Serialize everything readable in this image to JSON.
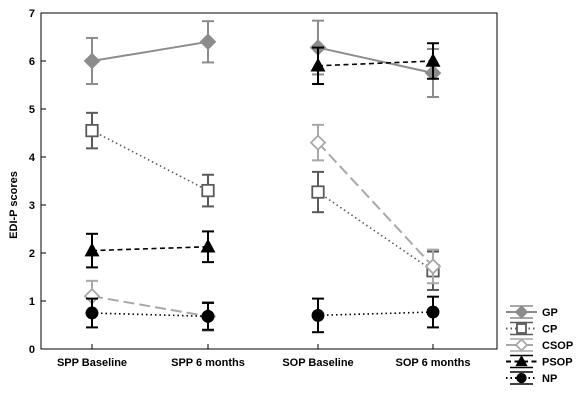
{
  "chart_data": {
    "type": "line",
    "title": "",
    "xlabel": "",
    "ylabel": "EDI-P scores",
    "ylim": [
      0,
      7
    ],
    "yticks": [
      "0",
      "1",
      "2",
      "3",
      "4",
      "5",
      "6",
      "7"
    ],
    "categories": [
      "SPP Baseline",
      "SPP 6 months",
      "SOP Baseline",
      "SOP 6 months"
    ],
    "grid": false,
    "legend_position": "bottom-right outside",
    "series": [
      {
        "name": "GP",
        "color": "#8c8c8c",
        "marker": "diamond-filled",
        "line": "solid",
        "segments": [
          {
            "points": [
              {
                "x": "SPP Baseline",
                "y": 6.0,
                "err": 0.48
              },
              {
                "x": "SPP 6 months",
                "y": 6.4,
                "err": 0.43
              }
            ]
          },
          {
            "points": [
              {
                "x": "SOP Baseline",
                "y": 6.28,
                "err": 0.56
              },
              {
                "x": "SOP 6 months",
                "y": 5.75,
                "err": 0.5
              }
            ]
          }
        ]
      },
      {
        "name": "CP",
        "color": "#5a5a5a",
        "marker": "square-open",
        "line": "dotted",
        "segments": [
          {
            "points": [
              {
                "x": "SPP Baseline",
                "y": 4.55,
                "err": 0.37
              },
              {
                "x": "SPP 6 months",
                "y": 3.3,
                "err": 0.33
              }
            ]
          },
          {
            "points": [
              {
                "x": "SOP Baseline",
                "y": 3.27,
                "err": 0.42
              },
              {
                "x": "SOP 6 months",
                "y": 1.63,
                "err": 0.4
              }
            ]
          }
        ]
      },
      {
        "name": "CSOP",
        "color": "#a8a8a8",
        "marker": "diamond-open",
        "line": "longdash",
        "segments": [
          {
            "points": [
              {
                "x": "SPP Baseline",
                "y": 1.1,
                "err": 0.32
              },
              {
                "x": "SPP 6 months",
                "y": 0.68,
                "err": 0.3
              }
            ]
          },
          {
            "points": [
              {
                "x": "SOP Baseline",
                "y": 4.3,
                "err": 0.37
              },
              {
                "x": "SOP 6 months",
                "y": 1.72,
                "err": 0.35
              }
            ]
          }
        ]
      },
      {
        "name": "PSOP",
        "color": "#000000",
        "marker": "triangle-filled",
        "line": "dashed",
        "segments": [
          {
            "points": [
              {
                "x": "SPP Baseline",
                "y": 2.05,
                "err": 0.35
              },
              {
                "x": "SPP 6 months",
                "y": 2.13,
                "err": 0.32
              }
            ]
          },
          {
            "points": [
              {
                "x": "SOP Baseline",
                "y": 5.9,
                "err": 0.38
              },
              {
                "x": "SOP 6 months",
                "y": 6.0,
                "err": 0.37
              }
            ]
          }
        ]
      },
      {
        "name": "NP",
        "color": "#000000",
        "marker": "circle-filled",
        "line": "dotted",
        "segments": [
          {
            "points": [
              {
                "x": "SPP Baseline",
                "y": 0.75,
                "err": 0.3
              },
              {
                "x": "SPP 6 months",
                "y": 0.68,
                "err": 0.28
              }
            ]
          },
          {
            "points": [
              {
                "x": "SOP Baseline",
                "y": 0.7,
                "err": 0.35
              },
              {
                "x": "SOP 6 months",
                "y": 0.77,
                "err": 0.32
              }
            ]
          }
        ]
      }
    ]
  }
}
